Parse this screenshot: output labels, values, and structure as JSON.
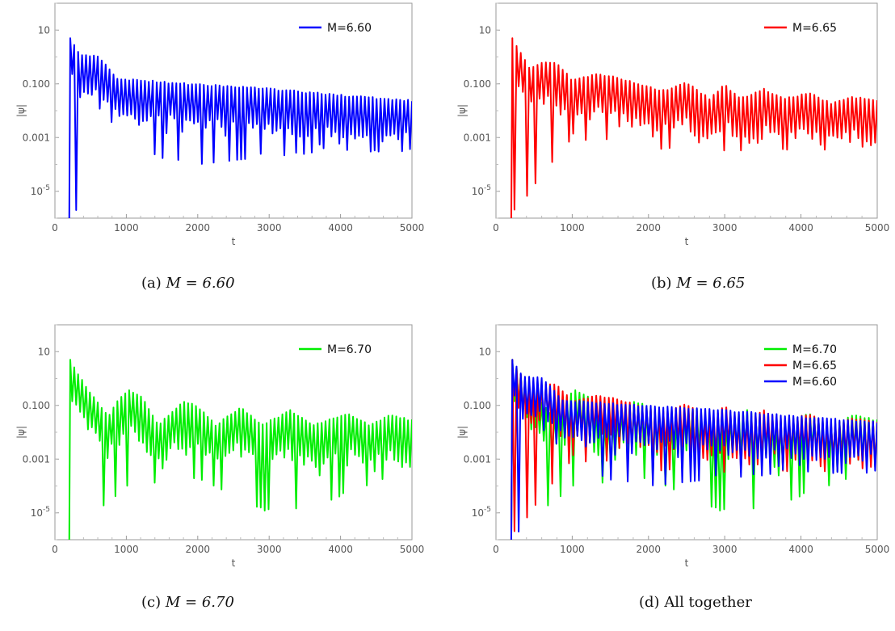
{
  "chart_data": [
    {
      "panel": "a",
      "type": "line",
      "xlabel": "t",
      "ylabel": "|ψ|",
      "yscale": "log",
      "xlim": [
        0,
        5000
      ],
      "ylim": [
        1e-06,
        100
      ],
      "x_ticks": [
        "0",
        "1000",
        "2000",
        "3000",
        "4000",
        "5000"
      ],
      "y_ticks": [
        "10",
        "0.100",
        "0.001",
        "10^-5"
      ],
      "legend_position": "top-right",
      "series": [
        {
          "name": "M=6.60",
          "color": "#0000ff",
          "start": 200,
          "peak_env": [
            [
              200,
              5
            ],
            [
              250,
              4
            ],
            [
              350,
              1.2
            ],
            [
              600,
              1.2
            ],
            [
              900,
              0.15
            ],
            [
              1100,
              0.15
            ],
            [
              2000,
              0.1
            ],
            [
              3000,
              0.07
            ],
            [
              4000,
              0.04
            ],
            [
              5000,
              0.025
            ]
          ],
          "period": 55,
          "dip_depth": [
            [
              200,
              1e-06
            ],
            [
              1000,
              0.0003
            ],
            [
              2000,
              0.0001
            ],
            [
              3000,
              0.0002
            ],
            [
              4000,
              0.0003
            ],
            [
              5000,
              0.0003
            ]
          ]
        }
      ],
      "caption": {
        "tag": "(a)",
        "text": "M = 6.60"
      }
    },
    {
      "panel": "b",
      "type": "line",
      "xlabel": "t",
      "ylabel": "|ψ|",
      "yscale": "log",
      "xlim": [
        0,
        5000
      ],
      "ylim": [
        1e-06,
        100
      ],
      "x_ticks": [
        "0",
        "1000",
        "2000",
        "3000",
        "4000",
        "5000"
      ],
      "y_ticks": [
        "10",
        "0.100",
        "0.001",
        "10^-5"
      ],
      "legend_position": "top-right",
      "series": [
        {
          "name": "M=6.65",
          "color": "#ff0000",
          "start": 200,
          "peak_env": [
            [
              200,
              5
            ],
            [
              300,
              2
            ],
            [
              450,
              0.4
            ],
            [
              650,
              0.7
            ],
            [
              800,
              0.6
            ],
            [
              1000,
              0.15
            ],
            [
              1350,
              0.25
            ],
            [
              1700,
              0.15
            ],
            [
              2000,
              0.08
            ],
            [
              2200,
              0.06
            ],
            [
              2500,
              0.12
            ],
            [
              2800,
              0.03
            ],
            [
              3000,
              0.1
            ],
            [
              3200,
              0.03
            ],
            [
              3500,
              0.07
            ],
            [
              3800,
              0.03
            ],
            [
              4100,
              0.05
            ],
            [
              4400,
              0.02
            ],
            [
              4700,
              0.035
            ],
            [
              5000,
              0.025
            ]
          ],
          "period": 55,
          "dip_depth": [
            [
              200,
              1e-06
            ],
            [
              1000,
              0.001
            ],
            [
              2000,
              0.0003
            ],
            [
              3000,
              0.0003
            ],
            [
              4000,
              0.0003
            ],
            [
              5000,
              0.0005
            ]
          ]
        }
      ],
      "caption": {
        "tag": "(b)",
        "text": "M = 6.65"
      }
    },
    {
      "panel": "c",
      "type": "line",
      "xlabel": "t",
      "ylabel": "|ψ|",
      "yscale": "log",
      "xlim": [
        0,
        5000
      ],
      "ylim": [
        1e-06,
        100
      ],
      "x_ticks": [
        "0",
        "1000",
        "2000",
        "3000",
        "4000",
        "5000"
      ],
      "y_ticks": [
        "10",
        "0.100",
        "0.001",
        "10^-5"
      ],
      "legend_position": "top-right",
      "series": [
        {
          "name": "M=6.70",
          "color": "#00ee00",
          "start": 200,
          "peak_env": [
            [
              200,
              5
            ],
            [
              300,
              2
            ],
            [
              500,
              0.3
            ],
            [
              750,
              0.04
            ],
            [
              900,
              0.2
            ],
            [
              1050,
              0.4
            ],
            [
              1200,
              0.25
            ],
            [
              1450,
              0.02
            ],
            [
              1800,
              0.15
            ],
            [
              2000,
              0.1
            ],
            [
              2250,
              0.02
            ],
            [
              2600,
              0.09
            ],
            [
              2900,
              0.02
            ],
            [
              3300,
              0.07
            ],
            [
              3600,
              0.02
            ],
            [
              4100,
              0.05
            ],
            [
              4400,
              0.02
            ],
            [
              4700,
              0.045
            ],
            [
              5000,
              0.03
            ]
          ],
          "period": 55,
          "dip_depth": [
            [
              200,
              1e-06
            ],
            [
              1000,
              0.0001
            ],
            [
              2000,
              0.0002
            ],
            [
              3000,
              1e-05
            ],
            [
              3700,
              2e-05
            ],
            [
              5000,
              0.0005
            ]
          ]
        }
      ],
      "caption": {
        "tag": "(c)",
        "text": "M = 6.70"
      }
    },
    {
      "panel": "d",
      "type": "line",
      "xlabel": "t",
      "ylabel": "|ψ|",
      "yscale": "log",
      "xlim": [
        0,
        5000
      ],
      "ylim": [
        1e-06,
        100
      ],
      "x_ticks": [
        "0",
        "1000",
        "2000",
        "3000",
        "4000",
        "5000"
      ],
      "y_ticks": [
        "10",
        "0.100",
        "0.001",
        "10^-5"
      ],
      "legend_position": "top-right",
      "series": [
        {
          "name": "M=6.70",
          "color": "#00ee00"
        },
        {
          "name": "M=6.65",
          "color": "#ff0000"
        },
        {
          "name": "M=6.60",
          "color": "#0000ff"
        }
      ],
      "caption": {
        "tag": "(d)",
        "text": "All together"
      }
    }
  ]
}
